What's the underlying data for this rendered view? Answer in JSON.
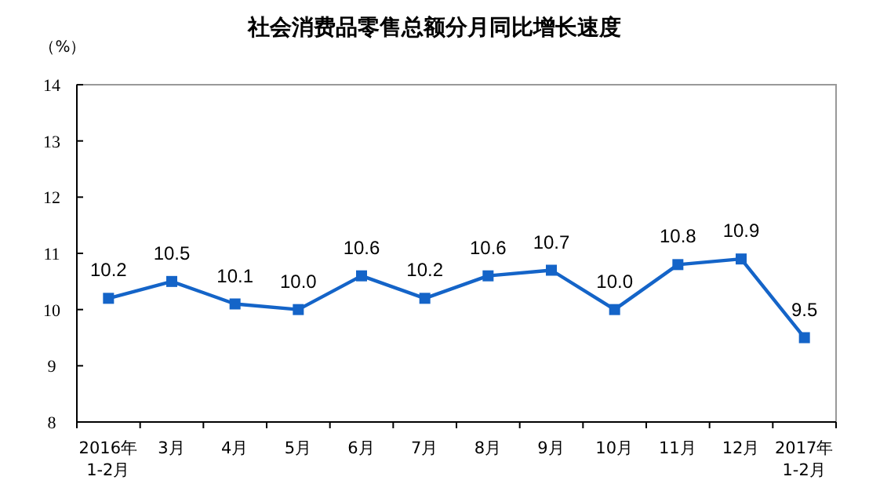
{
  "chart_data": {
    "type": "line",
    "title": "社会消费品零售总额分月同比增长速度",
    "ylabel": "（%）",
    "categories": [
      "2016年\n1-2月",
      "3月",
      "4月",
      "5月",
      "6月",
      "7月",
      "8月",
      "9月",
      "10月",
      "11月",
      "12月",
      "2017年\n1-2月"
    ],
    "series": [
      {
        "color": "#1464c8",
        "values": [
          10.2,
          10.5,
          10.1,
          10.0,
          10.6,
          10.2,
          10.6,
          10.7,
          10.0,
          10.8,
          10.9,
          9.5
        ],
        "value_labels": [
          "10.2",
          "10.5",
          "10.1",
          "10.0",
          "10.6",
          "10.2",
          "10.6",
          "10.7",
          "10.0",
          "10.8",
          "10.9",
          "9.5"
        ]
      }
    ],
    "ylim": [
      8,
      14
    ],
    "yticks": [
      8,
      9,
      10,
      11,
      12,
      13,
      14
    ],
    "grid": false,
    "marker": "square",
    "line_style": "solid"
  }
}
